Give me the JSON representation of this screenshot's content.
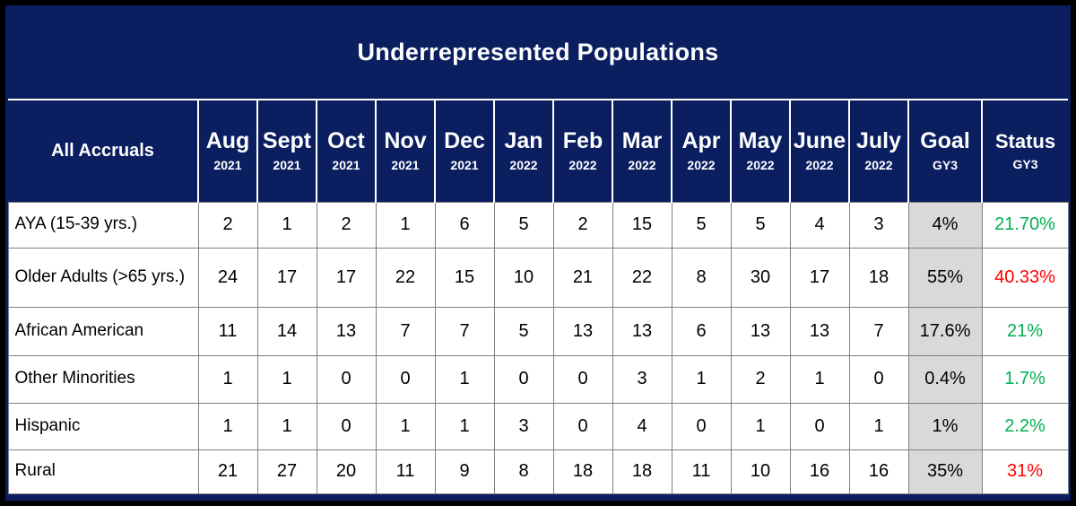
{
  "chart_data": {
    "type": "table",
    "title": "Underrepresented Populations",
    "row_header_label": "All Accruals",
    "columns": [
      {
        "month": "Aug",
        "year": "2021"
      },
      {
        "month": "Sept",
        "year": "2021"
      },
      {
        "month": "Oct",
        "year": "2021"
      },
      {
        "month": "Nov",
        "year": "2021"
      },
      {
        "month": "Dec",
        "year": "2021"
      },
      {
        "month": "Jan",
        "year": "2022"
      },
      {
        "month": "Feb",
        "year": "2022"
      },
      {
        "month": "Mar",
        "year": "2022"
      },
      {
        "month": "Apr",
        "year": "2022"
      },
      {
        "month": "May",
        "year": "2022"
      },
      {
        "month": "June",
        "year": "2022"
      },
      {
        "month": "July",
        "year": "2022"
      }
    ],
    "goal_header": {
      "label": "Goal",
      "sub": "GY3"
    },
    "status_header": {
      "label": "Status",
      "sub": "GY3"
    },
    "rows": [
      {
        "label": "AYA (15-39 yrs.)",
        "values": [
          2,
          1,
          2,
          1,
          6,
          5,
          2,
          15,
          5,
          5,
          4,
          3
        ],
        "goal": "4%",
        "status": "21.70%",
        "status_state": "good"
      },
      {
        "label": "Older Adults (>65 yrs.)",
        "values": [
          24,
          17,
          17,
          22,
          15,
          10,
          21,
          22,
          8,
          30,
          17,
          18
        ],
        "goal": "55%",
        "status": "40.33%",
        "status_state": "bad"
      },
      {
        "label": "African American",
        "values": [
          11,
          14,
          13,
          7,
          7,
          5,
          13,
          13,
          6,
          13,
          13,
          7
        ],
        "goal": "17.6%",
        "status": "21%",
        "status_state": "good"
      },
      {
        "label": "Other Minorities",
        "values": [
          1,
          1,
          0,
          0,
          1,
          0,
          0,
          3,
          1,
          2,
          1,
          0
        ],
        "goal": "0.4%",
        "status": "1.7%",
        "status_state": "good"
      },
      {
        "label": "Hispanic",
        "values": [
          1,
          1,
          0,
          1,
          1,
          3,
          0,
          4,
          0,
          1,
          0,
          1
        ],
        "goal": "1%",
        "status": "2.2%",
        "status_state": "good"
      },
      {
        "label": "Rural",
        "values": [
          21,
          27,
          20,
          11,
          9,
          8,
          18,
          18,
          11,
          10,
          16,
          16
        ],
        "goal": "35%",
        "status": "31%",
        "status_state": "bad"
      }
    ]
  },
  "colors": {
    "navy": "#0A1E60",
    "title_text": "#FFFFFF",
    "goal_bg": "#D9D9D9",
    "status_good": "#00B050",
    "status_bad": "#FF0000",
    "cell_border": "#808080"
  }
}
